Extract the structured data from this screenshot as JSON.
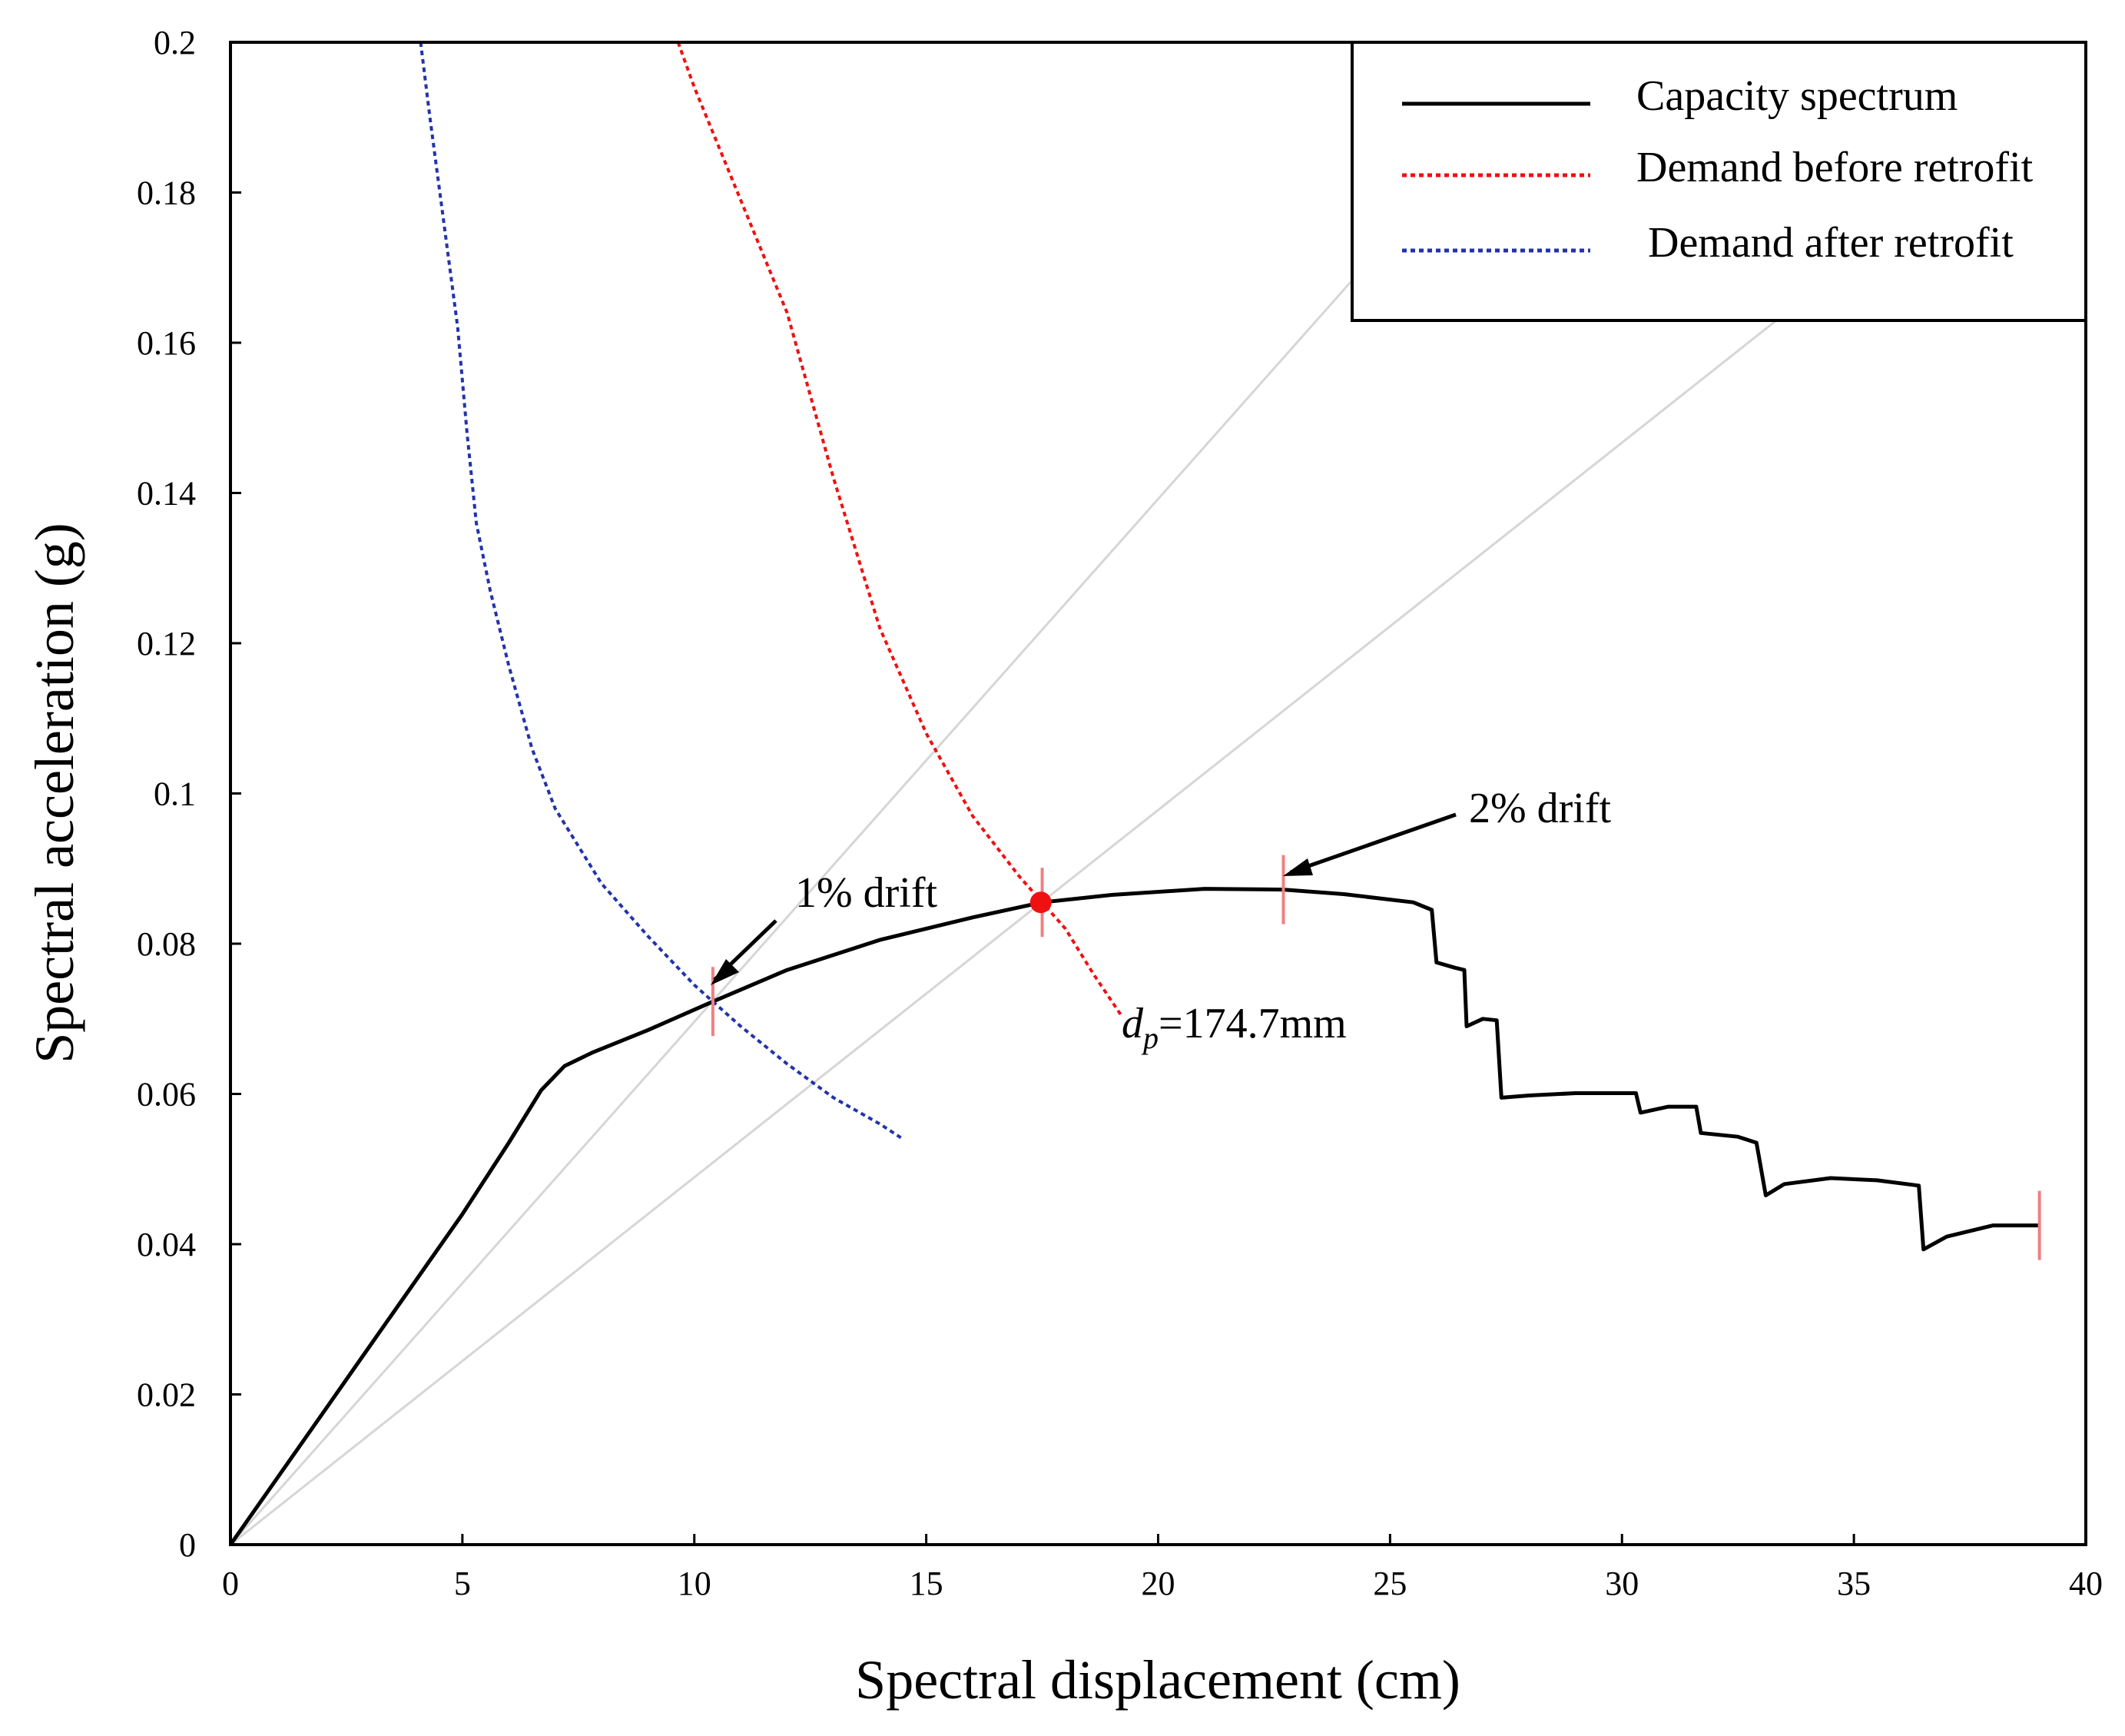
{
  "chart_data": {
    "type": "line",
    "title": "",
    "xlabel": "Spectral displacement (cm)",
    "ylabel": "Spectral acceleration (g)",
    "xlim": [
      0,
      40
    ],
    "ylim": [
      0,
      0.2
    ],
    "xticks": [
      0,
      5,
      10,
      15,
      20,
      25,
      30,
      35,
      40
    ],
    "xtick_labels": [
      "0",
      "5",
      "10",
      "15",
      "20",
      "25",
      "30",
      "35",
      "40"
    ],
    "yticks": [
      0,
      0.02,
      0.04,
      0.06,
      0.08,
      0.1,
      0.12,
      0.14,
      0.16,
      0.18,
      0.2
    ],
    "ytick_labels": [
      "0",
      "0.02",
      "0.04",
      "0.06",
      "0.08",
      "0.1",
      "0.12",
      "0.14",
      "0.16",
      "0.18",
      "0.2"
    ],
    "grid": false,
    "legend_position": "top-right",
    "series": [
      {
        "name": "Capacity spectrum",
        "color": "#000000",
        "style": "solid",
        "points": [
          [
            0,
            0
          ],
          [
            1,
            0.0088
          ],
          [
            2,
            0.0176
          ],
          [
            3,
            0.0264
          ],
          [
            4,
            0.0352
          ],
          [
            5,
            0.044
          ],
          [
            6,
            0.0535
          ],
          [
            6.7,
            0.0605
          ],
          [
            7.2,
            0.0637
          ],
          [
            7.8,
            0.0655
          ],
          [
            9,
            0.0685
          ],
          [
            10.4,
            0.0723
          ],
          [
            12,
            0.0765
          ],
          [
            14,
            0.0805
          ],
          [
            16,
            0.0835
          ],
          [
            17.5,
            0.0855
          ],
          [
            19,
            0.0865
          ],
          [
            21,
            0.0873
          ],
          [
            22.7,
            0.0872
          ],
          [
            24,
            0.0866
          ],
          [
            25.5,
            0.0855
          ],
          [
            25.9,
            0.0845
          ],
          [
            26,
            0.0775
          ],
          [
            26.4,
            0.0768
          ],
          [
            26.6,
            0.0765
          ],
          [
            26.65,
            0.069
          ],
          [
            27,
            0.07
          ],
          [
            27.3,
            0.0698
          ],
          [
            27.4,
            0.0595
          ],
          [
            28,
            0.0598
          ],
          [
            29,
            0.0601
          ],
          [
            30.3,
            0.0601
          ],
          [
            30.4,
            0.0575
          ],
          [
            31,
            0.0583
          ],
          [
            31.6,
            0.0583
          ],
          [
            31.7,
            0.0548
          ],
          [
            32.5,
            0.0543
          ],
          [
            32.9,
            0.0535
          ],
          [
            33.1,
            0.0465
          ],
          [
            33.5,
            0.048
          ],
          [
            34.5,
            0.0488
          ],
          [
            35.5,
            0.0485
          ],
          [
            36.4,
            0.0478
          ],
          [
            36.5,
            0.0393
          ],
          [
            37,
            0.041
          ],
          [
            38,
            0.0425
          ],
          [
            39,
            0.0425
          ]
        ]
      },
      {
        "name": "Demand before retrofit",
        "color": "#ee1111",
        "style": "dotted",
        "points": [
          [
            9.65,
            0.2
          ],
          [
            10,
            0.194
          ],
          [
            11,
            0.179
          ],
          [
            12,
            0.164
          ],
          [
            13,
            0.142
          ],
          [
            14,
            0.122
          ],
          [
            15,
            0.108
          ],
          [
            16,
            0.097
          ],
          [
            17,
            0.089
          ],
          [
            17.5,
            0.0855
          ],
          [
            18,
            0.082
          ],
          [
            18.6,
            0.076
          ],
          [
            19.2,
            0.0705
          ]
        ]
      },
      {
        "name": "Demand after retrofit",
        "color": "#2233aa",
        "style": "dotted",
        "points": [
          [
            4.1,
            0.2
          ],
          [
            4.3,
            0.19
          ],
          [
            4.6,
            0.176
          ],
          [
            4.9,
            0.162
          ],
          [
            5.1,
            0.148
          ],
          [
            5.3,
            0.136
          ],
          [
            5.6,
            0.127
          ],
          [
            6,
            0.117
          ],
          [
            6.5,
            0.106
          ],
          [
            7,
            0.098
          ],
          [
            8,
            0.088
          ],
          [
            9,
            0.081
          ],
          [
            10,
            0.0745
          ],
          [
            10.4,
            0.0723
          ],
          [
            11,
            0.069
          ],
          [
            12,
            0.064
          ],
          [
            13,
            0.0595
          ],
          [
            14,
            0.056
          ],
          [
            14.5,
            0.054
          ]
        ]
      }
    ],
    "reference_lines": [
      {
        "slope_g_per_cm": 0.00696
      },
      {
        "slope_g_per_cm": 0.00489
      }
    ],
    "drift_markers": [
      [
        10.4,
        0.0723
      ],
      [
        17.5,
        0.0855
      ],
      [
        22.7,
        0.0872
      ],
      [
        39,
        0.0425
      ]
    ],
    "performance_point": {
      "x": 17.47,
      "y": 0.0855
    },
    "annotations": [
      {
        "text": "1% drift",
        "x": 10.4,
        "y": 0.0723
      },
      {
        "text": "2% drift",
        "x": 22.7,
        "y": 0.0872
      }
    ],
    "dp_label": {
      "symbol": "d",
      "subscript": "p",
      "value": "=174.7mm"
    }
  }
}
